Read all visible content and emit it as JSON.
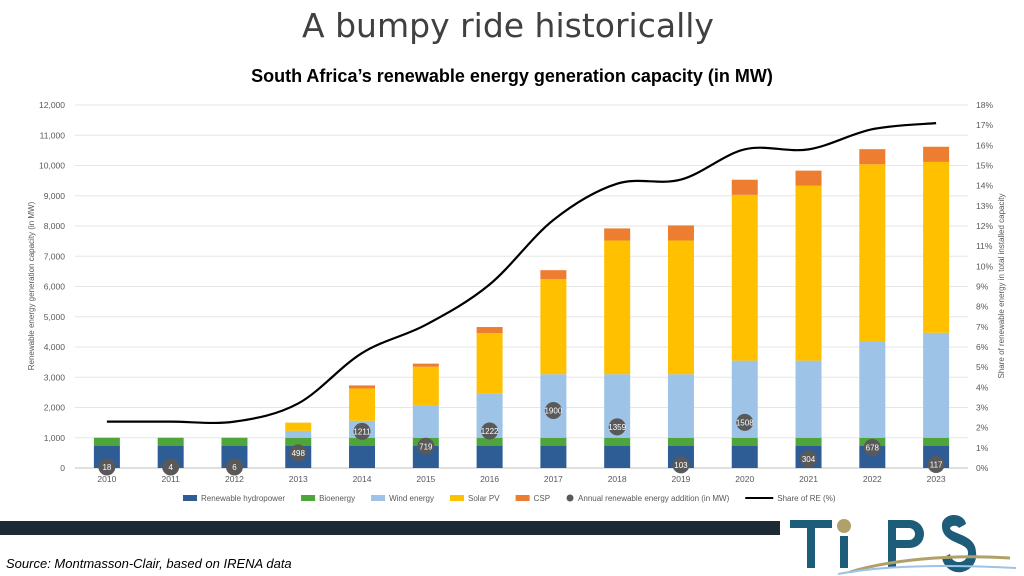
{
  "slide_title": "A bumpy ride historically",
  "source_text": "Source: Montmasson-Clair, based on IRENA data",
  "logo_text": "TIPS",
  "chart_data": {
    "type": "bar",
    "stacked": true,
    "title": "South Africa’s renewable energy generation capacity (in MW)",
    "ylabel": "Renewable energy generation capacity (in MW)",
    "y2label": "Share of renewable energy in total installed capacity",
    "ylim": [
      0,
      12000
    ],
    "y2lim": [
      0,
      18
    ],
    "yticks": [
      "0",
      "1,000",
      "2,000",
      "3,000",
      "4,000",
      "5,000",
      "6,000",
      "7,000",
      "8,000",
      "9,000",
      "10,000",
      "11,000",
      "12,000"
    ],
    "y2ticks": [
      "0%",
      "1%",
      "2%",
      "3%",
      "4%",
      "5%",
      "6%",
      "7%",
      "8%",
      "9%",
      "10%",
      "11%",
      "12%",
      "13%",
      "14%",
      "15%",
      "16%",
      "17%",
      "18%"
    ],
    "categories": [
      "2010",
      "2011",
      "2012",
      "2013",
      "2014",
      "2015",
      "2016",
      "2017",
      "2018",
      "2019",
      "2020",
      "2021",
      "2022",
      "2023"
    ],
    "series": [
      {
        "name": "Renewable hydropower",
        "color": "#2e5c95",
        "values": [
          740,
          740,
          740,
          740,
          740,
          740,
          740,
          740,
          740,
          740,
          740,
          740,
          740,
          740
        ]
      },
      {
        "name": "Bioenergy",
        "color": "#4ea53c",
        "values": [
          260,
          260,
          260,
          260,
          260,
          260,
          260,
          260,
          260,
          260,
          260,
          260,
          260,
          260
        ]
      },
      {
        "name": "Wind energy",
        "color": "#9dc3e6",
        "values": [
          0,
          0,
          0,
          230,
          560,
          1080,
          1470,
          2100,
          2100,
          2100,
          2550,
          2550,
          3200,
          3470
        ]
      },
      {
        "name": "Solar PV",
        "color": "#ffc000",
        "values": [
          0,
          0,
          0,
          270,
          1070,
          1270,
          1990,
          3140,
          4420,
          4420,
          5480,
          5780,
          5840,
          5650
        ]
      },
      {
        "name": "CSP",
        "color": "#ed7d31",
        "values": [
          0,
          0,
          0,
          0,
          100,
          100,
          200,
          300,
          400,
          500,
          500,
          500,
          500,
          500
        ]
      }
    ],
    "markers": {
      "name": "Annual renewable energy addition (in MW)",
      "color": "#595959",
      "labels": [
        "18",
        "4",
        "6",
        "498",
        "1211",
        "719",
        "1222",
        "1900",
        "1359",
        "103",
        "1508",
        "304",
        "678",
        "117"
      ],
      "values": [
        18,
        4,
        6,
        498,
        1211,
        719,
        1222,
        1900,
        1359,
        103,
        1508,
        304,
        678,
        117
      ]
    },
    "line": {
      "name": "Share of RE (%)",
      "color": "#000000",
      "axis": "right",
      "values": [
        2.3,
        2.3,
        2.3,
        3.2,
        5.7,
        7.1,
        9.1,
        12.3,
        14.1,
        14.3,
        15.8,
        15.8,
        16.8,
        17.1
      ]
    },
    "legend": {
      "position": "bottom"
    },
    "grid": true
  }
}
